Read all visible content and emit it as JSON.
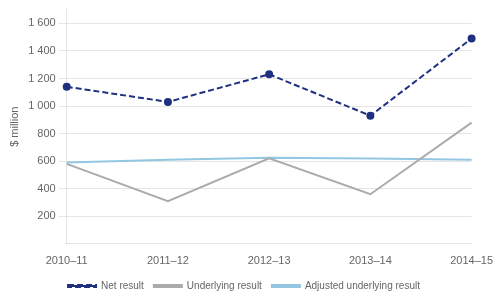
{
  "chart_data": {
    "type": "line",
    "y_label": "$ million",
    "categories": [
      "2010–11",
      "2011–12",
      "2012–13",
      "2013–14",
      "2014–15"
    ],
    "series": [
      {
        "name": "Net result",
        "color": "#1F3080",
        "values": [
          1140,
          1030,
          1230,
          930,
          1490
        ],
        "line_style": "dashed",
        "marker": "circle"
      },
      {
        "name": "Underlying result",
        "color": "#ABABAB",
        "values": [
          580,
          310,
          620,
          360,
          880
        ],
        "line_style": "solid"
      },
      {
        "name": "Adjusted underlying result",
        "color": "#93C6E0",
        "values": [
          590,
          610,
          625,
          620,
          610
        ],
        "line_style": "solid"
      }
    ],
    "ylim": [
      0,
      1700
    ],
    "yticks": [
      200,
      400,
      600,
      800,
      {
        "value": 1000,
        "label": "1 000"
      },
      {
        "value": 1200,
        "label": "1 200"
      },
      {
        "value": 1400,
        "label": "1 400"
      },
      {
        "value": 1600,
        "label": "1 600"
      }
    ],
    "grid": "y",
    "legend": "bottom"
  }
}
